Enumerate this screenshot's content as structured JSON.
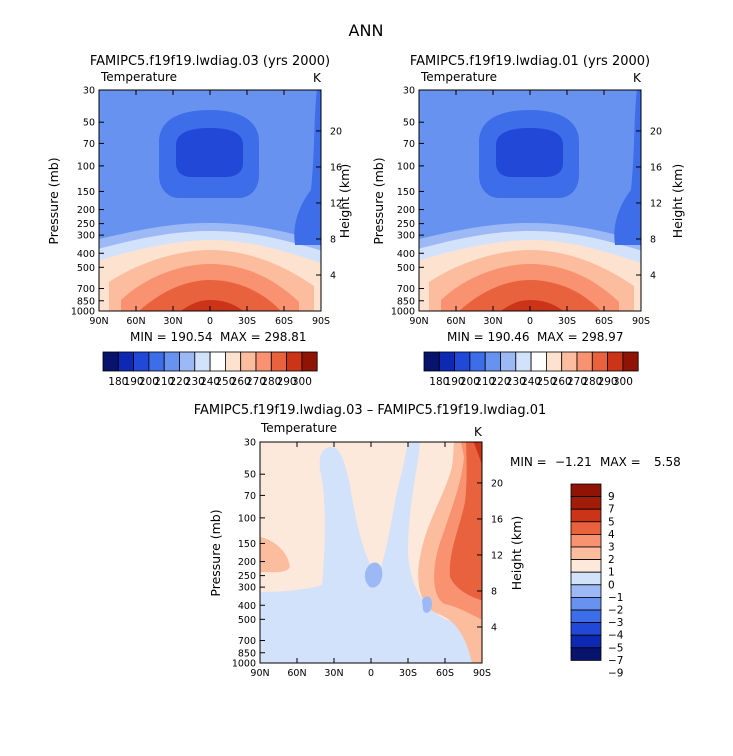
{
  "figure": {
    "title": "ANN",
    "colors": {
      "abs_levels": [
        "#08136b",
        "#0d29b4",
        "#2248d8",
        "#3d6de8",
        "#6792f0",
        "#9db9f5",
        "#d3e2fb",
        "#ffffff",
        "#fde2d0",
        "#fbbd9e",
        "#f89270",
        "#e8623e",
        "#cc3418",
        "#8f1405"
      ],
      "diff_levels": [
        "#08136b",
        "#0d29b4",
        "#2248d8",
        "#3d6de8",
        "#6792f0",
        "#9db9f5",
        "#d3e2fb",
        "#fde9db",
        "#fbbd9e",
        "#f89270",
        "#e8623e",
        "#cc3418",
        "#a01d0a",
        "#8f1405"
      ]
    }
  },
  "chart_data": [
    {
      "type": "heatmap",
      "title": "FAMIPC5.f19f19.lwdiag.03 (yrs 2000)",
      "field_label": "Temperature",
      "units": "K",
      "xlabel": "",
      "ylabel": "Pressure (mb)",
      "ylabel_right": "Height (km)",
      "x_ticks": [
        "90N",
        "60N",
        "30N",
        "0",
        "30S",
        "60S",
        "90S"
      ],
      "y_ticks": [
        "30",
        "50",
        "70",
        "100",
        "150",
        "200",
        "250",
        "300",
        "400",
        "500",
        "700",
        "850",
        "1000"
      ],
      "y_ticks_right": [
        "20",
        "16",
        "12",
        "8",
        "4"
      ],
      "latitude": [
        90,
        60,
        30,
        0,
        -30,
        -60,
        -90
      ],
      "pressure_mb": [
        30,
        50,
        70,
        100,
        150,
        200,
        250,
        300,
        400,
        500,
        700,
        850,
        1000
      ],
      "min_label": "MIN = 190.54",
      "max_label": "MAX = 298.81",
      "min": 190.54,
      "max": 298.81,
      "colorbar_labels": [
        "180",
        "190",
        "200",
        "210",
        "220",
        "230",
        "240",
        "250",
        "260",
        "270",
        "280",
        "290",
        "300"
      ],
      "contour_levels": [
        180,
        190,
        200,
        210,
        220,
        230,
        240,
        250,
        260,
        270,
        280,
        290,
        300
      ]
    },
    {
      "type": "heatmap",
      "title": "FAMIPC5.f19f19.lwdiag.01 (yrs 2000)",
      "field_label": "Temperature",
      "units": "K",
      "xlabel": "",
      "ylabel": "Pressure (mb)",
      "ylabel_right": "Height (km)",
      "x_ticks": [
        "90N",
        "60N",
        "30N",
        "0",
        "30S",
        "60S",
        "90S"
      ],
      "y_ticks": [
        "30",
        "50",
        "70",
        "100",
        "150",
        "200",
        "250",
        "300",
        "400",
        "500",
        "700",
        "850",
        "1000"
      ],
      "y_ticks_right": [
        "20",
        "16",
        "12",
        "8",
        "4"
      ],
      "latitude": [
        90,
        60,
        30,
        0,
        -30,
        -60,
        -90
      ],
      "pressure_mb": [
        30,
        50,
        70,
        100,
        150,
        200,
        250,
        300,
        400,
        500,
        700,
        850,
        1000
      ],
      "min_label": "MIN = 190.46",
      "max_label": "MAX = 298.97",
      "min": 190.46,
      "max": 298.97,
      "colorbar_labels": [
        "180",
        "190",
        "200",
        "210",
        "220",
        "230",
        "240",
        "250",
        "260",
        "270",
        "280",
        "290",
        "300"
      ],
      "contour_levels": [
        180,
        190,
        200,
        210,
        220,
        230,
        240,
        250,
        260,
        270,
        280,
        290,
        300
      ]
    },
    {
      "type": "heatmap",
      "title": "FAMIPC5.f19f19.lwdiag.03 – FAMIPC5.f19f19.lwdiag.01",
      "field_label": "Temperature",
      "units": "K",
      "xlabel": "",
      "ylabel": "Pressure (mb)",
      "ylabel_right": "Height (km)",
      "x_ticks": [
        "90N",
        "60N",
        "30N",
        "0",
        "30S",
        "60S",
        "90S"
      ],
      "y_ticks": [
        "30",
        "50",
        "70",
        "100",
        "150",
        "200",
        "250",
        "300",
        "400",
        "500",
        "700",
        "850",
        "1000"
      ],
      "y_ticks_right": [
        "20",
        "16",
        "12",
        "8",
        "4"
      ],
      "latitude": [
        90,
        60,
        30,
        0,
        -30,
        -60,
        -90
      ],
      "pressure_mb": [
        30,
        50,
        70,
        100,
        150,
        200,
        250,
        300,
        400,
        500,
        700,
        850,
        1000
      ],
      "min_label": "MIN =",
      "min_value": "−1.21",
      "max_label": "MAX =",
      "max_value": "5.58",
      "min": -1.21,
      "max": 5.58,
      "colorbar_labels": [
        "9",
        "7",
        "5",
        "4",
        "3",
        "2",
        "1",
        "0",
        "−1",
        "−2",
        "−3",
        "−4",
        "−5",
        "−7",
        "−9"
      ],
      "contour_levels": [
        -9,
        -7,
        -5,
        -4,
        -3,
        -2,
        -1,
        0,
        1,
        2,
        3,
        4,
        5,
        7,
        9
      ]
    }
  ]
}
